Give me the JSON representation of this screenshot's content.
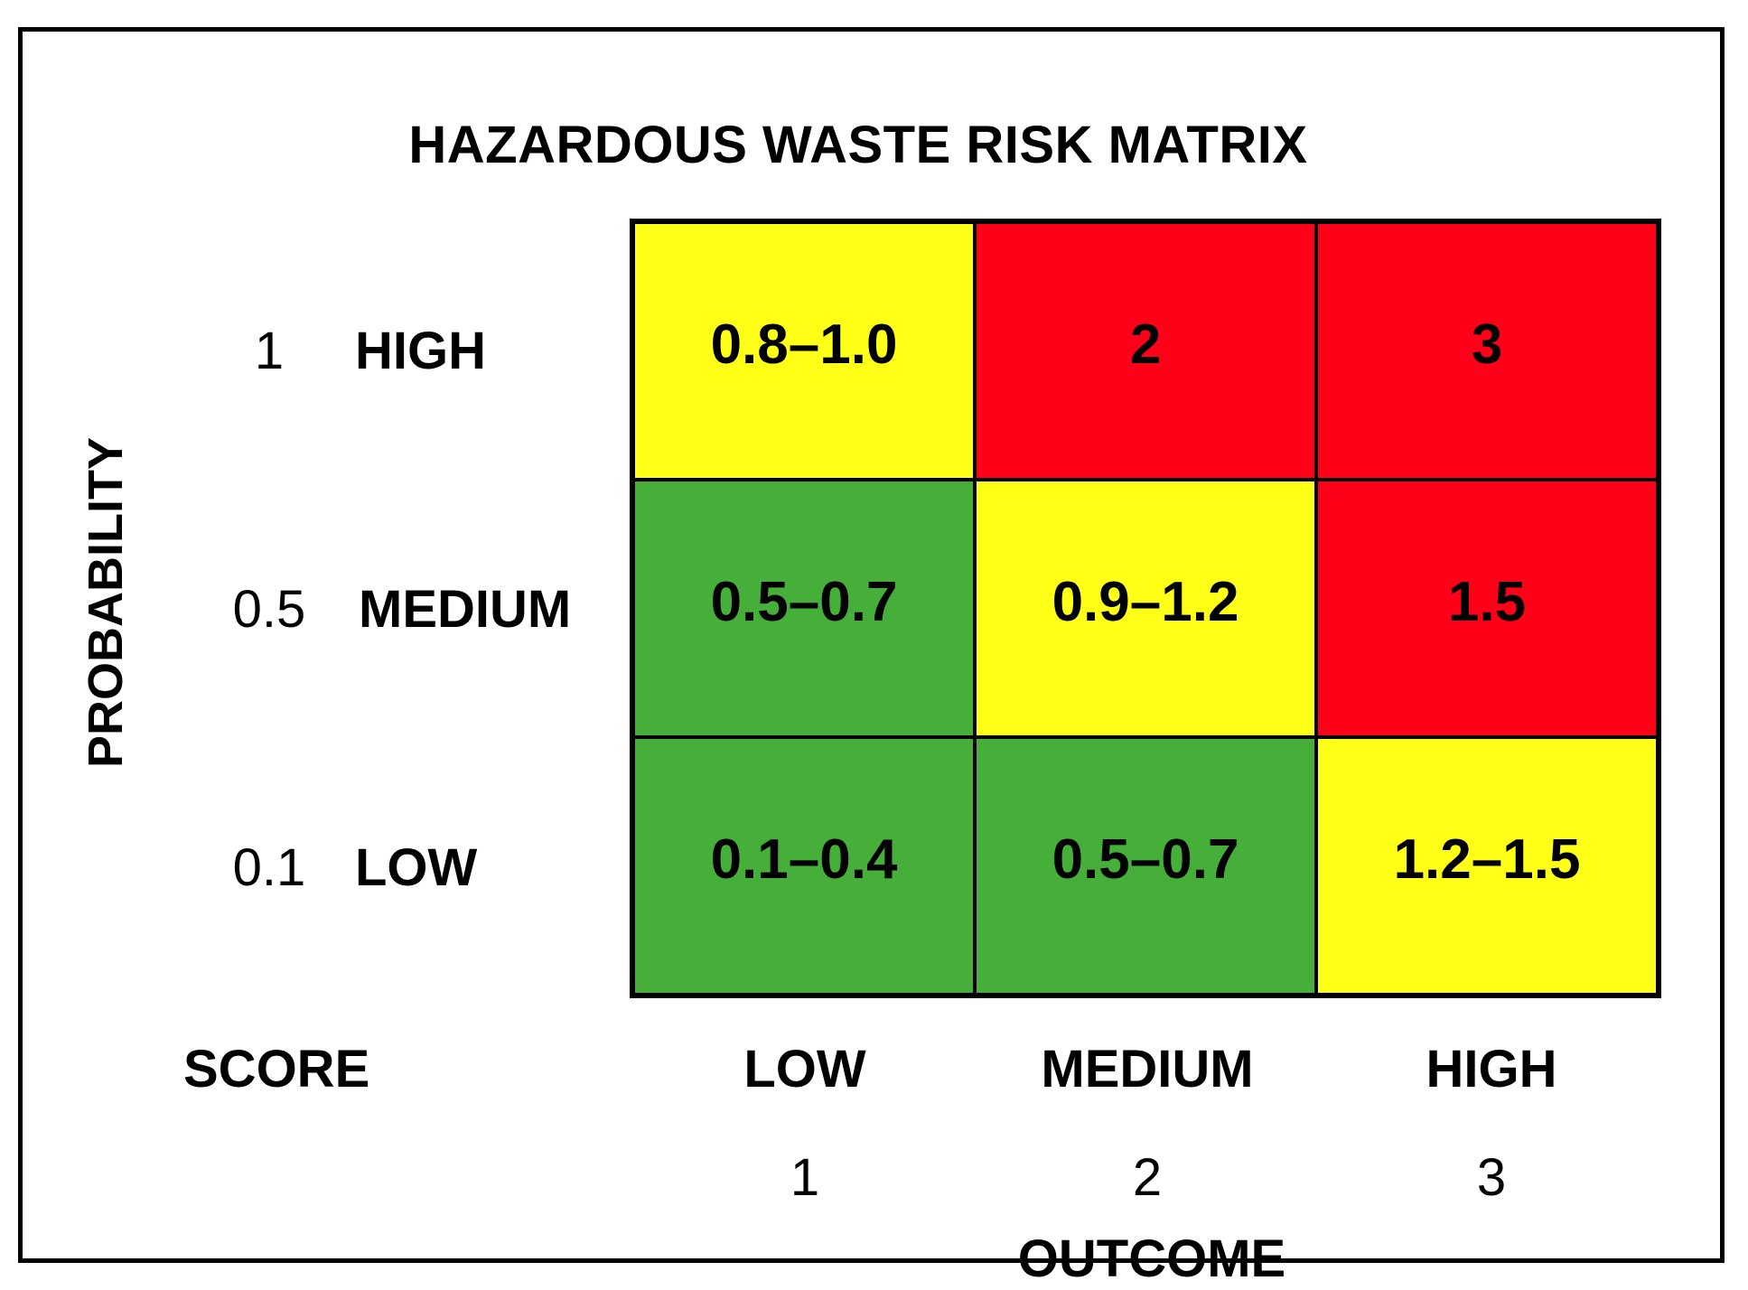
{
  "title": "HAZARDOUS WASTE RISK MATRIX",
  "y_axis_title": "PROBABILITY",
  "x_axis_title": "OUTCOME",
  "score_label": "SCORE",
  "colors": {
    "green": "#45AF3A",
    "yellow": "#FFFF17",
    "red": "#FF0019",
    "border": "#000000"
  },
  "rows": [
    {
      "score": "1",
      "label": "HIGH"
    },
    {
      "score": "0.5",
      "label": "MEDIUM"
    },
    {
      "score": "0.1",
      "label": "LOW"
    }
  ],
  "columns": [
    {
      "label": "LOW",
      "score": "1"
    },
    {
      "label": "MEDIUM",
      "score": "2"
    },
    {
      "label": "HIGH",
      "score": "3"
    }
  ],
  "matrix": [
    [
      {
        "value": "0.8–1.0",
        "color": "yellow"
      },
      {
        "value": "2",
        "color": "red"
      },
      {
        "value": "3",
        "color": "red"
      }
    ],
    [
      {
        "value": "0.5–0.7",
        "color": "green"
      },
      {
        "value": "0.9–1.2",
        "color": "yellow"
      },
      {
        "value": "1.5",
        "color": "red"
      }
    ],
    [
      {
        "value": "0.1–0.4",
        "color": "green"
      },
      {
        "value": "0.5–0.7",
        "color": "green"
      },
      {
        "value": "1.2–1.5",
        "color": "yellow"
      }
    ]
  ]
}
